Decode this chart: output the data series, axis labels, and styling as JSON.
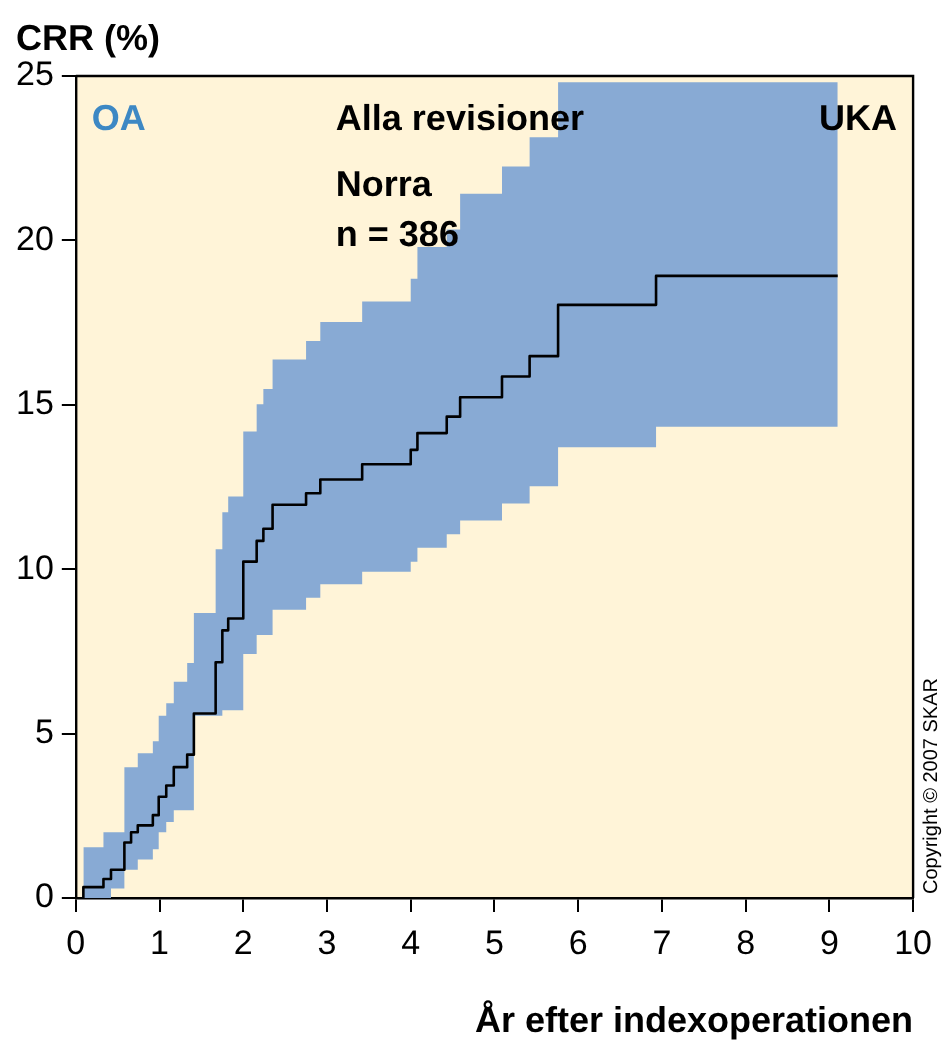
{
  "chart_data": {
    "type": "step",
    "ylabel": "CRR (%)",
    "xlabel": "År efter indexoperationen",
    "annotations": [
      "OA",
      "Alla revisioner",
      "Norra\nn = 386",
      "UKA",
      "Copyright © 2007 SKAR"
    ],
    "xlim": [
      0,
      10
    ],
    "xticks": [
      0,
      1,
      2,
      3,
      4,
      5,
      6,
      7,
      8,
      9,
      10
    ],
    "ylim": [
      0,
      25
    ],
    "yticks": [
      0,
      5,
      10,
      15,
      20,
      25
    ],
    "grid": false,
    "series": [
      {
        "color": "#000000",
        "x": [
          0.09,
          0.33,
          0.42,
          0.58,
          0.66,
          0.74,
          0.92,
          0.99,
          1.08,
          1.17,
          1.33,
          1.41,
          1.67,
          1.75,
          1.82,
          2.0,
          2.16,
          2.24,
          2.35,
          2.75,
          2.92,
          3.42,
          4.0,
          4.08,
          4.43,
          4.59,
          5.09,
          5.42,
          5.76,
          6.93,
          7.34,
          9.1
        ],
        "values": [
          0,
          0.33,
          0.58,
          0.86,
          1.69,
          2.0,
          2.21,
          2.52,
          3.08,
          3.42,
          3.98,
          4.36,
          5.61,
          7.17,
          8.14,
          8.5,
          10.23,
          10.86,
          11.23,
          11.96,
          12.31,
          12.73,
          13.19,
          13.63,
          14.14,
          14.64,
          15.23,
          15.86,
          16.48,
          18.04,
          18.92,
          18.92
        ],
        "lower": [
          0,
          0,
          0,
          0.29,
          0.86,
          0.86,
          1.17,
          1.48,
          2.0,
          2.31,
          2.67,
          2.67,
          5.54,
          5.54,
          5.71,
          5.71,
          7.42,
          8.0,
          8.0,
          8.77,
          9.13,
          9.54,
          9.92,
          10.23,
          10.65,
          11.06,
          11.48,
          12.0,
          12.52,
          13.71,
          14.33,
          14.33
        ],
        "upper": [
          1.0,
          1.54,
          2.0,
          2.0,
          3.98,
          3.98,
          4.4,
          4.77,
          5.54,
          5.92,
          6.58,
          7.15,
          8.67,
          10.61,
          11.73,
          12.21,
          14.19,
          15.02,
          15.48,
          16.38,
          16.94,
          17.52,
          18.14,
          18.83,
          19.8,
          20.33,
          21.42,
          22.25,
          23.14,
          24.81,
          24.81,
          24.81
        ]
      }
    ]
  }
}
